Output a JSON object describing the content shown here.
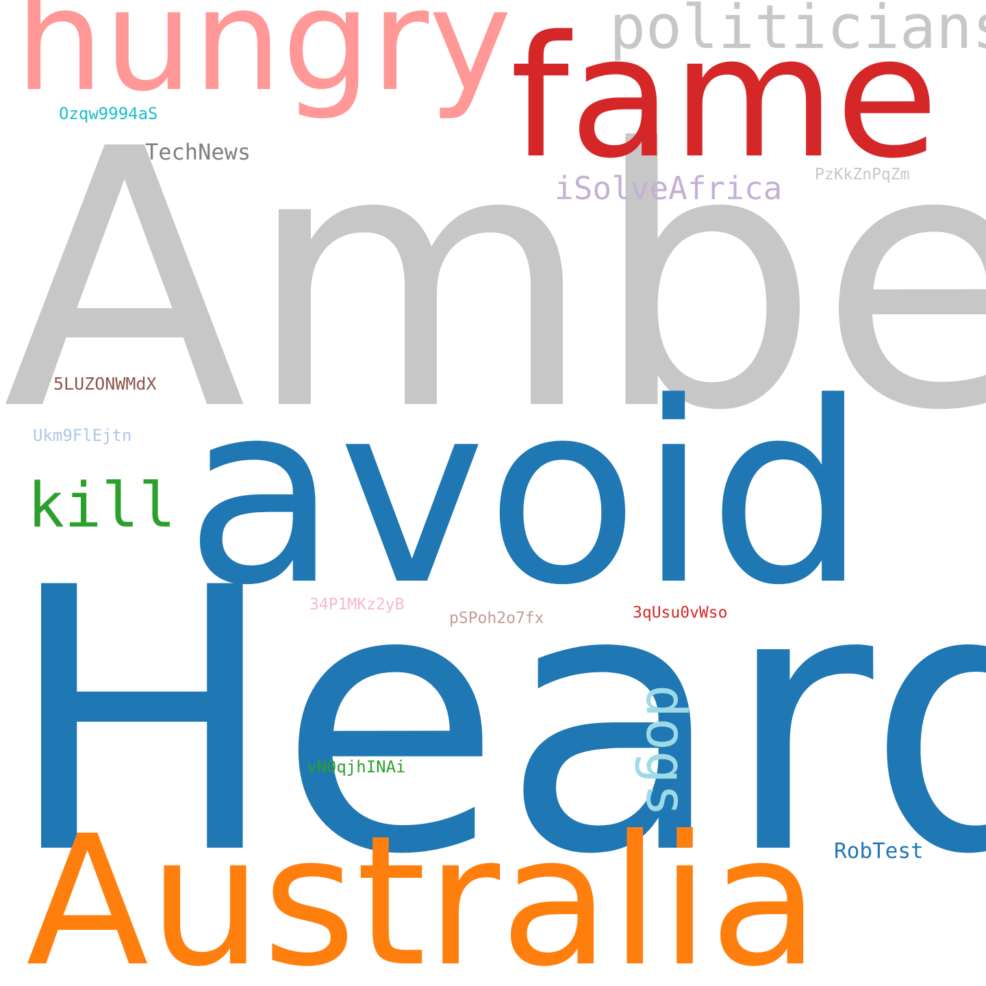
{
  "words": {
    "amber": {
      "text": "Amber",
      "color": "#c7c7c7"
    },
    "heard": {
      "text": "Heard",
      "color": "#1f77b4"
    },
    "avoid": {
      "text": "avoid",
      "color": "#1f77b4"
    },
    "australia": {
      "text": "Australia",
      "color": "#ff7f0e"
    },
    "fame": {
      "text": "fame",
      "color": "#d62728"
    },
    "hungry": {
      "text": "hungry",
      "color": "#ff9896"
    },
    "politicians": {
      "text": "politicians",
      "color": "#c7c7c7"
    },
    "kill": {
      "text": "kill",
      "color": "#2ca02c"
    },
    "dogs": {
      "text": "dogs",
      "color": "#9edae5"
    },
    "isolveafrica": {
      "text": "iSolveAfrica",
      "color": "#c5b0d5"
    },
    "technews": {
      "text": "TechNews",
      "color": "#7f7f7f"
    },
    "robtest": {
      "text": "RobTest",
      "color": "#1f77b4"
    },
    "ozqw": {
      "text": "Ozqw9994aS",
      "color": "#17becf"
    },
    "pzkk": {
      "text": "PzKkZnPqZm",
      "color": "#c7c7c7"
    },
    "luz": {
      "text": "5LUZONWMdX",
      "color": "#8c564b"
    },
    "ukm9": {
      "text": "Ukm9FlEjtn",
      "color": "#aec7e8"
    },
    "p1mk": {
      "text": "34P1MKz2yB",
      "color": "#f7b6d2"
    },
    "pspoh": {
      "text": "pSPoh2o7fx",
      "color": "#c49c94"
    },
    "qusu": {
      "text": "3qUsu0vWso",
      "color": "#d62728"
    },
    "vn0": {
      "text": "vN0qjhINAi",
      "color": "#2ca02c"
    }
  }
}
